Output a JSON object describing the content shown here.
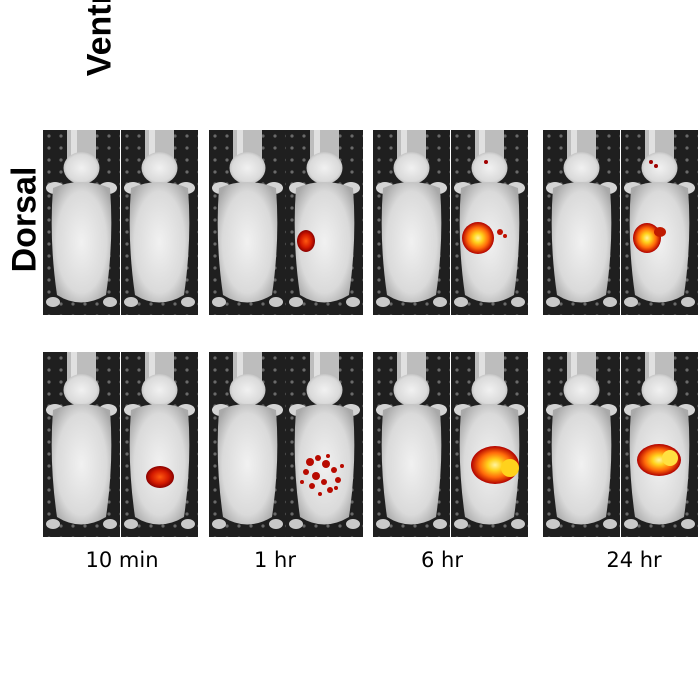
{
  "row_labels": {
    "dorsal": "Dorsal",
    "ventral": "Ventral"
  },
  "time_points": [
    "10 min",
    "1 hr",
    "6 hr",
    "24 hr"
  ],
  "panels": {
    "dorsal": [
      {
        "time": "10 min",
        "left_signal": "none",
        "right_signal": "none"
      },
      {
        "time": "1 hr",
        "left_signal": "none",
        "right_signal": "small red spot"
      },
      {
        "time": "6 hr",
        "left_signal": "none",
        "right_signal": "strong yellow-red hotspot"
      },
      {
        "time": "24 hr",
        "left_signal": "none",
        "right_signal": "strong yellow-red hotspot"
      }
    ],
    "ventral": [
      {
        "time": "10 min",
        "left_signal": "none",
        "right_signal": "red patch"
      },
      {
        "time": "1 hr",
        "left_signal": "none",
        "right_signal": "speckled red patch"
      },
      {
        "time": "6 hr",
        "left_signal": "none",
        "right_signal": "strong yellow-red hotspot"
      },
      {
        "time": "24 hr",
        "left_signal": "none",
        "right_signal": "strong yellow-red hotspot"
      }
    ]
  },
  "colors": {
    "background": "#ffffff",
    "stage": "#1e1e1e",
    "mouse": "#e6e6e6",
    "signal_hot": "#ffe830",
    "signal_warm": "#ff7a10",
    "signal_cool": "#b00000"
  }
}
